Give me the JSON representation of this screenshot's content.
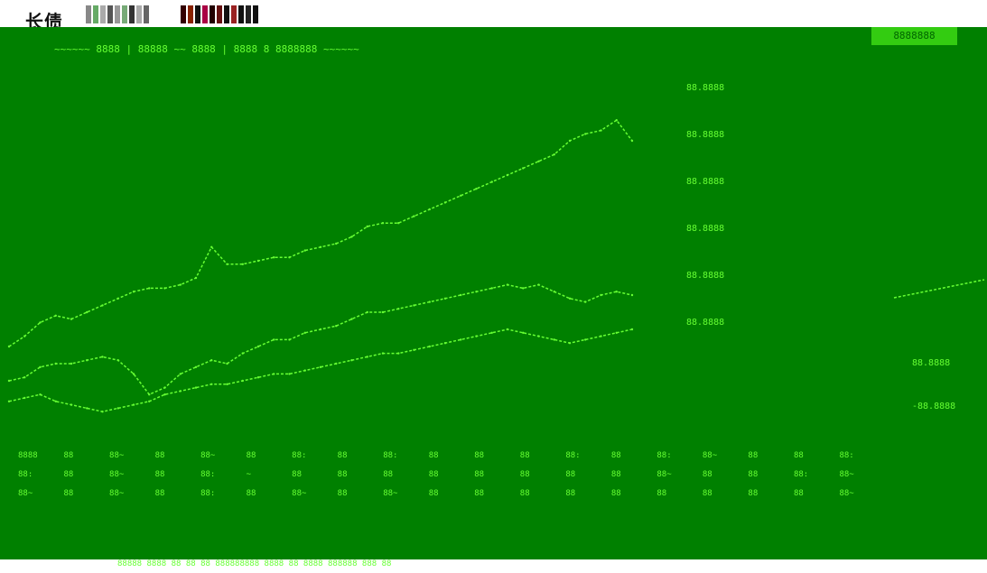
{
  "window": {
    "title": "长债"
  },
  "panel": {
    "caption": "~~~~~~ 8888 | 88888 ~~ 8888 | 8888 8 8888888 ~~~~~~",
    "legend_right": "8888888"
  },
  "chart_data": {
    "type": "line",
    "title": "",
    "xlabel": "",
    "ylabel": "",
    "y_left_ticks": [
      "88.8888",
      "88.8888",
      "88.8888",
      "88.8888",
      "88.8888",
      "88.8888"
    ],
    "y_right_ticks": [
      "88.8888",
      "-88.8888"
    ],
    "x": [
      0,
      1,
      2,
      3,
      4,
      5,
      6,
      7,
      8,
      9,
      10,
      11,
      12,
      13,
      14,
      15,
      16,
      17,
      18,
      19,
      20,
      21,
      22,
      23,
      24,
      25,
      26,
      27,
      28,
      29,
      30,
      31,
      32,
      33,
      34,
      35,
      36,
      37,
      38,
      39,
      40
    ],
    "series": [
      {
        "values": [
          20,
          23,
          27,
          29,
          28,
          30,
          32,
          34,
          36,
          37,
          37,
          38,
          40,
          49,
          44,
          44,
          45,
          46,
          46,
          48,
          49,
          50,
          52,
          55,
          56,
          56,
          58,
          60,
          62,
          64,
          66,
          68,
          70,
          72,
          74,
          76,
          80,
          82,
          83,
          86,
          80
        ],
        "color": "#66ff33"
      },
      {
        "values": [
          10,
          11,
          14,
          15,
          15,
          16,
          17,
          16,
          12,
          6,
          8,
          12,
          14,
          16,
          15,
          18,
          20,
          22,
          22,
          24,
          25,
          26,
          28,
          30,
          30,
          31,
          32,
          33,
          34,
          35,
          36,
          37,
          38,
          37,
          38,
          36,
          34,
          33,
          35,
          36,
          35
        ],
        "color": "#66ff33"
      },
      {
        "values": [
          4,
          5,
          6,
          4,
          3,
          2,
          1,
          2,
          3,
          4,
          6,
          7,
          8,
          9,
          9,
          10,
          11,
          12,
          12,
          13,
          14,
          15,
          16,
          17,
          18,
          18,
          19,
          20,
          21,
          22,
          23,
          24,
          25,
          24,
          23,
          22,
          21,
          22,
          23,
          24,
          25
        ],
        "color": "#66ff33"
      }
    ],
    "right_series": {
      "values": [
        30,
        31,
        32,
        33,
        34,
        35,
        36,
        37,
        38,
        39,
        40
      ],
      "color": "#66ff33"
    }
  },
  "table": {
    "rows": [
      [
        "8888",
        "88",
        "88~",
        "88",
        "88~",
        "88",
        "88:",
        "88",
        "88:",
        "88",
        "88",
        "88",
        "88:",
        "88",
        "88:",
        "88~",
        "88",
        "88",
        "88:"
      ],
      [
        "88:",
        "88",
        "88~",
        "88",
        "88:",
        "~",
        "88",
        "88",
        "88",
        "88",
        "88",
        "88",
        "88",
        "88",
        "88~",
        "88",
        "88",
        "88:",
        "88~"
      ],
      [
        "88~",
        "88",
        "88~",
        "88",
        "88:",
        "88",
        "88~",
        "88",
        "88~",
        "88",
        "88",
        "88",
        "88",
        "88",
        "88",
        "88",
        "88",
        "88",
        "88~"
      ]
    ]
  },
  "footer": {
    "text": "88888 8888 88 88 88 888888888 8888 88 8888 888888 888 88"
  }
}
